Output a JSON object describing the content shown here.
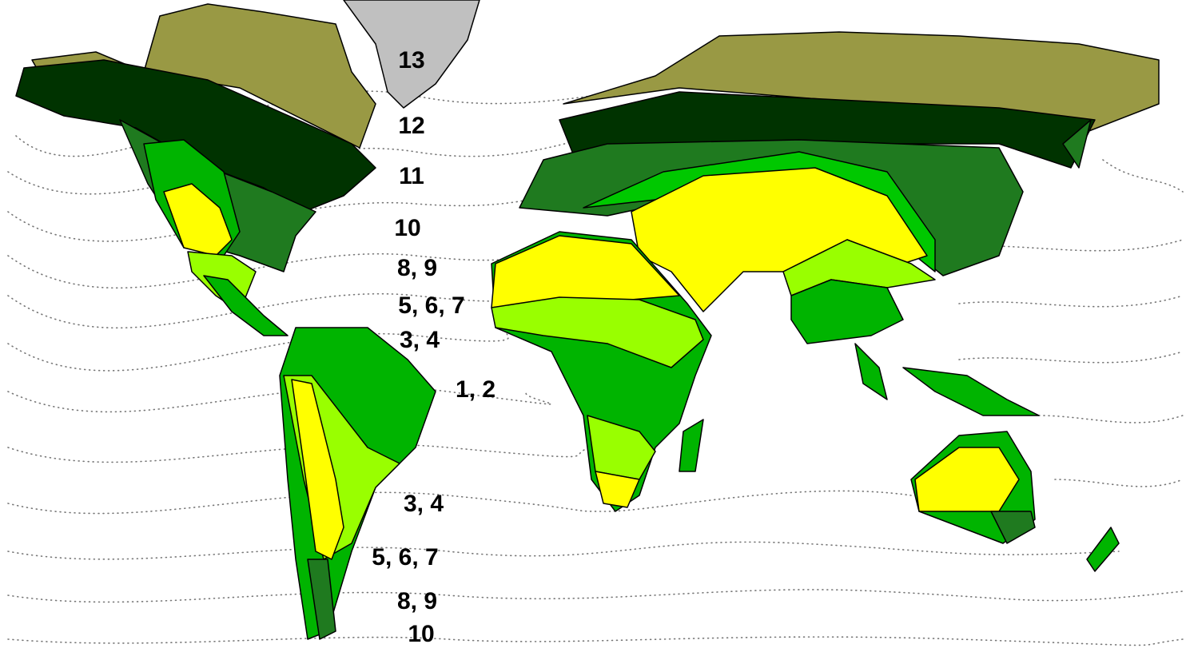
{
  "labels": [
    "13",
    "12",
    "11",
    "10",
    "8, 9",
    "5, 6, 7",
    "3, 4",
    "1, 2",
    "3, 4",
    "5, 6, 7",
    "8, 9",
    "10"
  ]
}
